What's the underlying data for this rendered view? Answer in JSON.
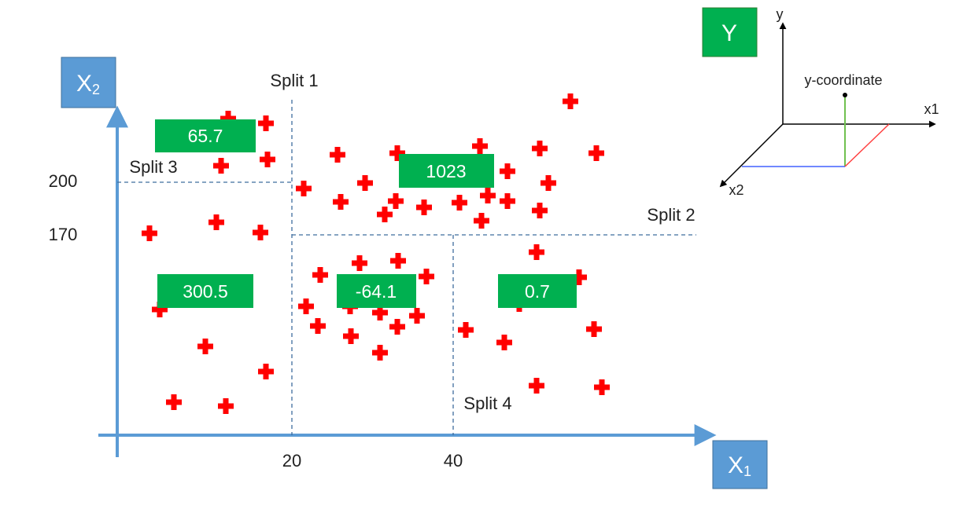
{
  "axes": {
    "x_label": {
      "main": "X",
      "sub": "1"
    },
    "y_label": {
      "main": "X",
      "sub": "2"
    },
    "x_ticks": [
      "20",
      "40"
    ],
    "y_ticks": [
      "200",
      "170"
    ]
  },
  "splits": [
    "Split 1",
    "Split 2",
    "Split 3",
    "Split 4"
  ],
  "region_values": [
    "65.7",
    "1023",
    "300.5",
    "-64.1",
    "0.7"
  ],
  "inset": {
    "target_label": "Y",
    "axis_y": "y",
    "axis_x1": "x1",
    "axis_x2": "x2",
    "point_label": "y-coordinate"
  },
  "colors": {
    "axis": "#5b9bd5",
    "label_box": "#5b9bd5",
    "value_box": "#00b050",
    "marker": "#ff0000",
    "split_line": "#3f6d9e",
    "inset_green": "#70c050",
    "inset_red": "#ff4040",
    "inset_blue": "#4060ff"
  },
  "icons": {
    "marker": "plus-marker-icon"
  }
}
